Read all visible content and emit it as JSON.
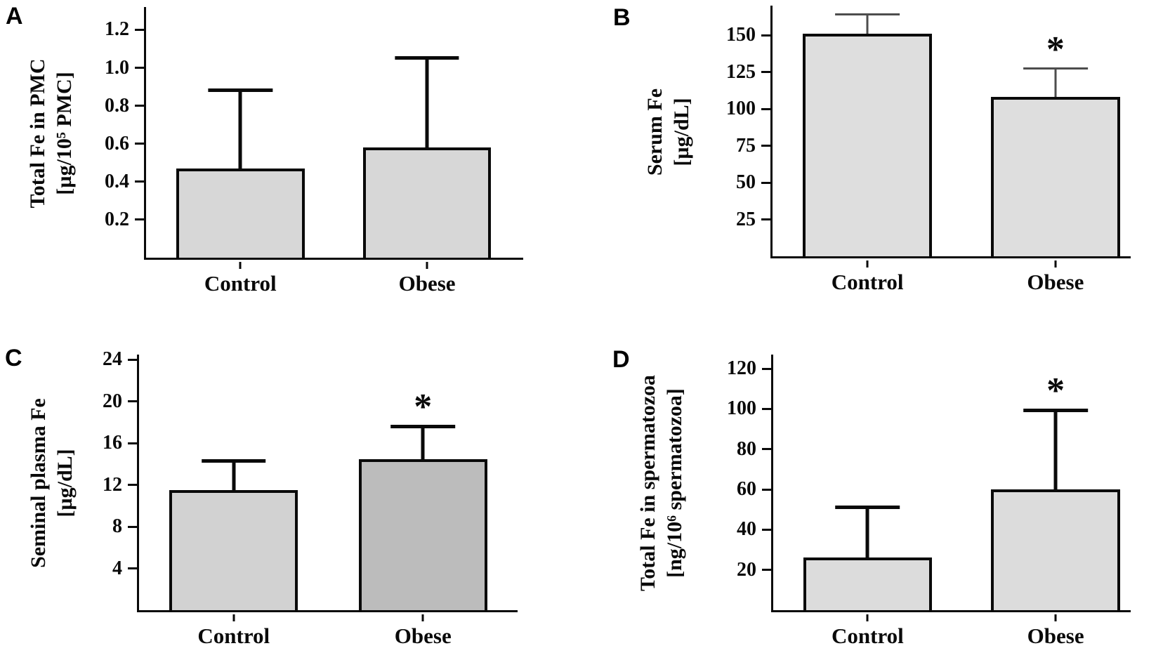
{
  "figure": {
    "background": "#ffffff",
    "panels": [
      "A",
      "B",
      "C",
      "D"
    ],
    "groups": [
      "Control",
      "Obese"
    ],
    "significance_marker": "*",
    "axis_color": "#0a0a0a"
  },
  "chart_data": [
    {
      "panel": "A",
      "type": "bar",
      "title": "",
      "ylabel_lines": [
        "Total Fe in PMC",
        "[µg/10⁵ PMC]"
      ],
      "categories": [
        "Control",
        "Obese"
      ],
      "values": [
        0.47,
        0.58
      ],
      "error_plus": [
        0.42,
        0.48
      ],
      "significance": [
        "",
        ""
      ],
      "ytick_labels": [
        "0.2",
        "0.4",
        "0.6",
        "0.8",
        "1.0",
        "1.2"
      ],
      "ytick_values": [
        0.2,
        0.4,
        0.6,
        0.8,
        1.0,
        1.2
      ],
      "ylim": [
        0,
        1.32
      ],
      "grid": false,
      "legend": "none",
      "bar_fills": [
        "#d7d7d7",
        "#d7d7d7"
      ],
      "bar_border": "#0a0a0a",
      "error_color": "#0a0a0a",
      "error_stroke": 5
    },
    {
      "panel": "B",
      "type": "bar",
      "title": "",
      "ylabel_lines": [
        "Serum Fe",
        "[µg/dL]"
      ],
      "categories": [
        "Control",
        "Obese"
      ],
      "values": [
        151,
        108
      ],
      "error_plus": [
        14,
        20
      ],
      "significance": [
        "",
        "*"
      ],
      "ytick_labels": [
        "25",
        "50",
        "75",
        "100",
        "125",
        "150"
      ],
      "ytick_values": [
        25,
        50,
        75,
        100,
        125,
        150
      ],
      "ylim": [
        0,
        170
      ],
      "grid": false,
      "legend": "none",
      "bar_fills": [
        "#dedede",
        "#dedede"
      ],
      "bar_border": "#0a0a0a",
      "error_color": "#4d4d4d",
      "error_stroke": 3
    },
    {
      "panel": "C",
      "type": "bar",
      "title": "",
      "ylabel_lines": [
        "Seminal plasma Fe",
        "[µg/dL]"
      ],
      "categories": [
        "Control",
        "Obese"
      ],
      "values": [
        11.5,
        14.5
      ],
      "error_plus": [
        3.0,
        3.3
      ],
      "significance": [
        "",
        "*"
      ],
      "ytick_labels": [
        "4",
        "8",
        "12",
        "16",
        "20",
        "24"
      ],
      "ytick_values": [
        4,
        8,
        12,
        16,
        20,
        24
      ],
      "ylim": [
        0,
        24.5
      ],
      "grid": false,
      "legend": "none",
      "bar_fills": [
        "#d2d2d2",
        "#bcbcbc"
      ],
      "bar_border": "#0a0a0a",
      "error_color": "#0a0a0a",
      "error_stroke": 5
    },
    {
      "panel": "D",
      "type": "bar",
      "title": "",
      "ylabel_lines": [
        "Total Fe in spermatozoa",
        "[ng/10⁶ spermatozoa]"
      ],
      "categories": [
        "Control",
        "Obese"
      ],
      "values": [
        26,
        60
      ],
      "error_plus": [
        26,
        40
      ],
      "significance": [
        "",
        "*"
      ],
      "ytick_labels": [
        "20",
        "40",
        "60",
        "80",
        "100",
        "120"
      ],
      "ytick_values": [
        20,
        40,
        60,
        80,
        100,
        120
      ],
      "ylim": [
        0,
        127
      ],
      "grid": false,
      "legend": "none",
      "bar_fills": [
        "#dcdcdc",
        "#dcdcdc"
      ],
      "bar_border": "#0a0a0a",
      "error_color": "#0a0a0a",
      "error_stroke": 5
    }
  ]
}
